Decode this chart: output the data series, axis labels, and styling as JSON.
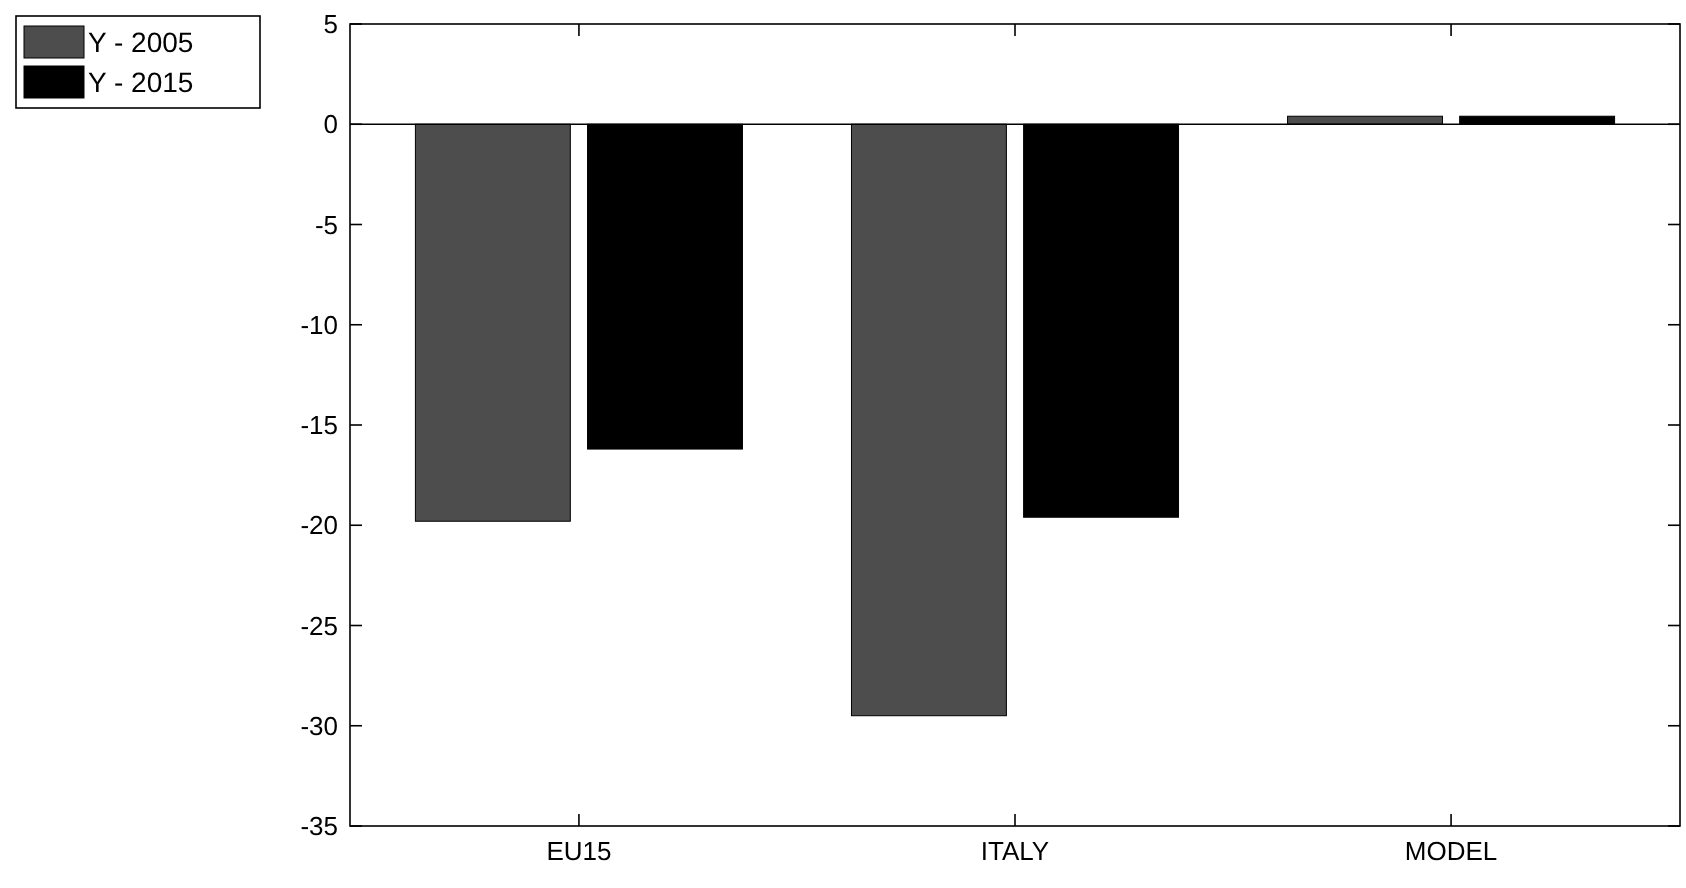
{
  "chart_data": {
    "type": "bar",
    "categories": [
      "EU15",
      "ITALY",
      "MODEL"
    ],
    "series": [
      {
        "name": "Y - 2005",
        "color": "#4d4d4d",
        "values": [
          -19.8,
          -29.5,
          0.4
        ]
      },
      {
        "name": "Y - 2015",
        "color": "#000000",
        "values": [
          -16.2,
          -19.6,
          0.4
        ]
      }
    ],
    "ylim": [
      -35,
      5
    ],
    "yticks": [
      -35,
      -30,
      -25,
      -20,
      -15,
      -10,
      -5,
      0,
      5
    ],
    "legend": "top left"
  }
}
